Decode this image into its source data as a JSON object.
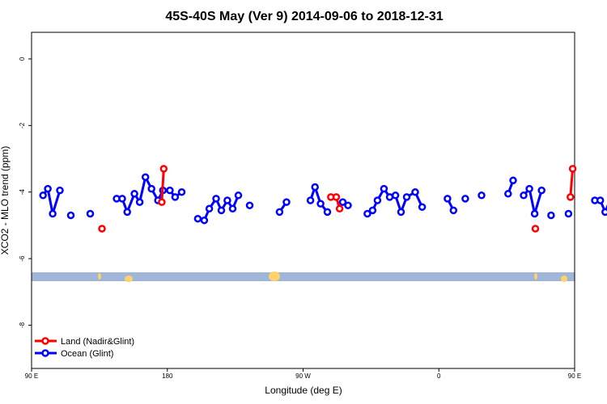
{
  "chart_data": {
    "type": "line",
    "title": "45S-40S May (Ver 9)   2014-09-06 to 2018-12-31",
    "xlabel": "Longitude (deg E)",
    "ylabel": "XCO2 - MLO trend (ppm)",
    "xlim": [
      90,
      450
    ],
    "ylim": [
      -9.3,
      0.8
    ],
    "x_ticks": [
      {
        "value": 90,
        "label": "90 E"
      },
      {
        "value": 180,
        "label": "180"
      },
      {
        "value": 270,
        "label": "90 W"
      },
      {
        "value": 360,
        "label": "0"
      },
      {
        "value": 450,
        "label": "90 E"
      },
      {
        "value": 540,
        "label": "180"
      }
    ],
    "y_ticks": [
      0,
      -2,
      -4,
      -6,
      -8
    ],
    "legend_position": "bottom-left",
    "series": [
      {
        "name": "Land (Nadir&Glint)",
        "color": "#ff0000",
        "segments": [
          [
            [
              136.7,
              -5.1
            ]
          ],
          [
            [
              176.3,
              -4.3
            ],
            [
              177.6,
              -3.3
            ]
          ],
          [
            [
              288.4,
              -4.15
            ],
            [
              292.0,
              -4.15
            ],
            [
              294.2,
              -4.5
            ]
          ],
          [
            [
              424.0,
              -5.1
            ]
          ],
          [
            [
              447.2,
              -4.15
            ],
            [
              448.7,
              -3.3
            ]
          ]
        ]
      },
      {
        "name": "Ocean (Glint)",
        "color": "#0000ff",
        "segments": [
          [
            [
              97.6,
              -4.1
            ],
            [
              100.8,
              -3.9
            ],
            [
              104.0,
              -4.65
            ],
            [
              108.8,
              -3.95
            ]
          ],
          [
            [
              116.0,
              -4.7
            ]
          ],
          [
            [
              128.9,
              -4.65
            ]
          ],
          [
            [
              146.4,
              -4.2
            ],
            [
              150.1,
              -4.2
            ],
            [
              153.4,
              -4.6
            ],
            [
              158.2,
              -4.05
            ],
            [
              161.7,
              -4.3
            ],
            [
              165.5,
              -3.55
            ],
            [
              169.5,
              -3.9
            ],
            [
              173.8,
              -4.25
            ],
            [
              177.1,
              -3.95
            ],
            [
              181.7,
              -3.95
            ],
            [
              185.2,
              -4.15
            ],
            [
              189.5,
              -4.0
            ]
          ],
          [
            [
              200.2,
              -4.8
            ],
            [
              204.5,
              -4.85
            ],
            [
              207.8,
              -4.5
            ],
            [
              212.3,
              -4.2
            ],
            [
              215.8,
              -4.55
            ],
            [
              219.8,
              -4.25
            ],
            [
              223.3,
              -4.5
            ],
            [
              227.1,
              -4.1
            ]
          ],
          [
            [
              234.6,
              -4.4
            ]
          ],
          [
            [
              254.4,
              -4.6
            ],
            [
              259.0,
              -4.3
            ]
          ],
          [
            [
              274.9,
              -4.25
            ],
            [
              277.9,
              -3.85
            ],
            [
              281.6,
              -4.35
            ],
            [
              286.1,
              -4.6
            ]
          ],
          [
            [
              296.3,
              -4.3
            ],
            [
              299.8,
              -4.4
            ]
          ],
          [
            [
              312.6,
              -4.65
            ],
            [
              316.1,
              -4.55
            ],
            [
              319.3,
              -4.25
            ],
            [
              323.6,
              -3.9
            ],
            [
              327.4,
              -4.15
            ],
            [
              331.2,
              -4.1
            ],
            [
              334.9,
              -4.6
            ],
            [
              338.7,
              -4.15
            ],
            [
              344.3,
              -4.0
            ],
            [
              348.9,
              -4.45
            ]
          ],
          [
            [
              365.7,
              -4.2
            ],
            [
              369.7,
              -4.55
            ]
          ],
          [
            [
              377.5,
              -4.2
            ]
          ],
          [
            [
              388.3,
              -4.1
            ]
          ],
          [
            [
              405.9,
              -4.05
            ],
            [
              409.2,
              -3.65
            ]
          ],
          [
            [
              416.2,
              -4.1
            ],
            [
              420.0,
              -3.9
            ],
            [
              423.5,
              -4.65
            ],
            [
              428.1,
              -3.95
            ]
          ],
          [
            [
              434.4,
              -4.7
            ]
          ],
          [
            [
              445.9,
              -4.65
            ]
          ],
          [
            [
              463.4,
              -4.25
            ],
            [
              467.0,
              -4.25
            ],
            [
              470.3,
              -4.6
            ],
            [
              475.1,
              -4.05
            ],
            [
              478.6,
              -4.35
            ],
            [
              482.5,
              -3.55
            ]
          ]
        ]
      }
    ]
  }
}
